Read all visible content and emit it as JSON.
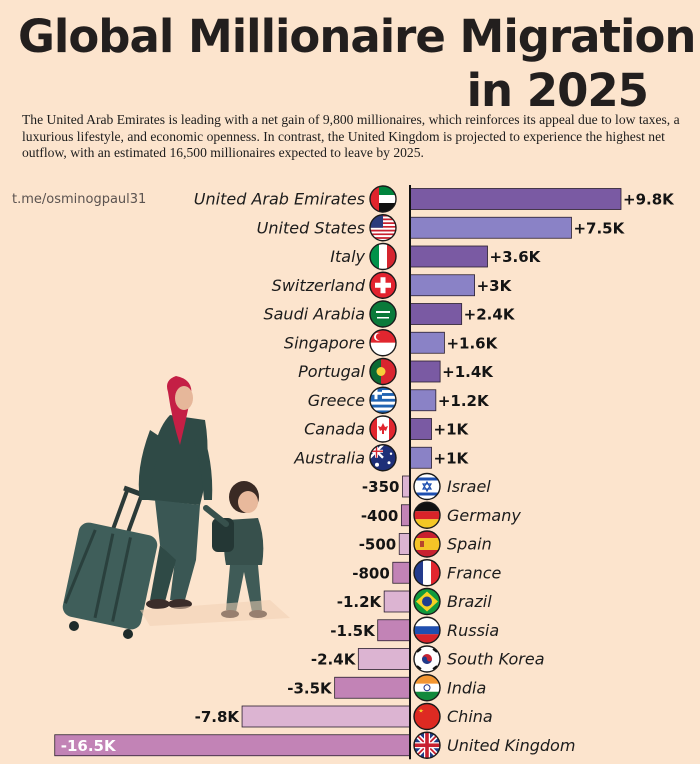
{
  "header": {
    "title_line1": "Global Millionaire Migration",
    "title_line2": "in 2025",
    "subtitle": "The United Arab Emirates is leading with a net gain of 9,800 millionaires, which reinforces its appeal due to low taxes, a luxurious lifestyle, and economic openness. In contrast, the United Kingdom is projected to experience the highest net outflow, with an estimated 16,500 millionaires expected to leave by 2025.",
    "watermark": "t.me/osminogpaul31"
  },
  "colors": {
    "background": "#fce4cd",
    "positive_dark": "#7a5aa3",
    "positive_light": "#8a82c6",
    "negative_dark": "#c283b6",
    "negative_light": "#dcb4d2",
    "axis": "#111111"
  },
  "chart_data": {
    "type": "bar",
    "orientation": "horizontal",
    "title": "Global Millionaire Migration in 2025",
    "unit": "millionaires (net)",
    "xlim": [
      -16500,
      9800
    ],
    "categories": [
      "United Arab Emirates",
      "United States",
      "Italy",
      "Switzerland",
      "Saudi Arabia",
      "Singapore",
      "Portugal",
      "Greece",
      "Canada",
      "Australia",
      "Israel",
      "Germany",
      "Spain",
      "France",
      "Brazil",
      "Russia",
      "South Korea",
      "India",
      "China",
      "United Kingdom"
    ],
    "values": [
      9800,
      7500,
      3600,
      3000,
      2400,
      1600,
      1400,
      1200,
      1000,
      1000,
      -350,
      -400,
      -500,
      -800,
      -1200,
      -1500,
      -2400,
      -3500,
      -7800,
      -16500
    ],
    "labels": [
      "+9.8K",
      "+7.5K",
      "+3.6K",
      "+3K",
      "+2.4K",
      "+1.6K",
      "+1.4K",
      "+1.2K",
      "+1K",
      "+1K",
      "-350",
      "-400",
      "-500",
      "-800",
      "-1.2K",
      "-1.5K",
      "-2.4K",
      "-3.5K",
      "-7.8K",
      "-16.5K"
    ],
    "flag_icons": [
      "flag-uae-icon",
      "flag-usa-icon",
      "flag-italy-icon",
      "flag-switzerland-icon",
      "flag-saudi-arabia-icon",
      "flag-singapore-icon",
      "flag-portugal-icon",
      "flag-greece-icon",
      "flag-canada-icon",
      "flag-australia-icon",
      "flag-israel-icon",
      "flag-germany-icon",
      "flag-spain-icon",
      "flag-france-icon",
      "flag-brazil-icon",
      "flag-russia-icon",
      "flag-south-korea-icon",
      "flag-india-icon",
      "flag-china-icon",
      "flag-uk-icon"
    ]
  },
  "illustration": {
    "icon": "family-traveling-with-suitcase-icon"
  }
}
